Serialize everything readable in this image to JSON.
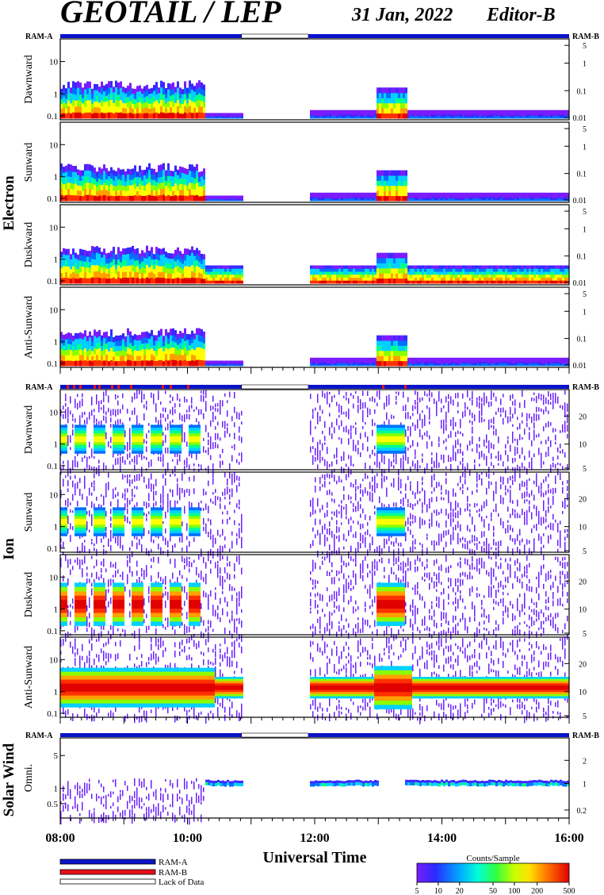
{
  "header": {
    "title": "GEOTAIL / LEP",
    "date": "31 Jan, 2022",
    "editor": "Editor-B"
  },
  "colors": {
    "ram_a": "#0a14c8",
    "ram_b": "#e8101a",
    "lack": "#ffffff",
    "spectrum": [
      "#7a1cff",
      "#3a28ff",
      "#0070ff",
      "#00d0ff",
      "#00ff90",
      "#8cff00",
      "#ffff00",
      "#ffa000",
      "#ff3000",
      "#e00000"
    ]
  },
  "chart_data": [
    {
      "type": "heatmap",
      "section": "Electron",
      "panels": [
        {
          "name": "Dawnward",
          "ylabel": "Dawnward"
        },
        {
          "name": "Sunward",
          "ylabel": "Sunward"
        },
        {
          "name": "Duskward",
          "ylabel": "Duskward"
        },
        {
          "name": "Anti-Sunward",
          "ylabel": "Anti-Sunward"
        }
      ],
      "left_ticks": [
        "10",
        "1",
        "0.1"
      ],
      "right_ticks": [
        "5",
        "1",
        "0.1",
        "0.01"
      ],
      "mode_bar_label_left": "RAM-A",
      "mode_bar_label_right": "RAM-B",
      "data_gap_hours": [
        10.85,
        11.9
      ]
    },
    {
      "type": "heatmap",
      "section": "Ion",
      "panels": [
        {
          "name": "Dawnward",
          "ylabel": "Dawnward"
        },
        {
          "name": "Sunward",
          "ylabel": "Sunward"
        },
        {
          "name": "Duskward",
          "ylabel": "Duskward"
        },
        {
          "name": "Anti-Sunward",
          "ylabel": "Anti-Sunward"
        }
      ],
      "left_ticks": [
        "10",
        "1",
        "0.1"
      ],
      "right_ticks": [
        "20",
        "10",
        "5"
      ],
      "mode_bar_label_left": "RAM-A",
      "mode_bar_label_right": "RAM-B",
      "data_gap_hours": [
        10.85,
        11.9
      ]
    },
    {
      "type": "heatmap",
      "section": "Solar Wind",
      "panels": [
        {
          "name": "Omni.",
          "ylabel": "Omni."
        }
      ],
      "left_ticks": [
        "5",
        "1",
        "0.5"
      ],
      "right_ticks": [
        "2",
        "1",
        "0.2"
      ],
      "mode_bar_label_left": "RAM-A",
      "mode_bar_label_right": "RAM-B",
      "data_gap_hours": [
        10.85,
        11.9
      ]
    }
  ],
  "x_axis": {
    "label": "Universal Time",
    "ticks": [
      "08:00",
      "10:00",
      "12:00",
      "14:00",
      "16:00"
    ],
    "range_hours": [
      8,
      16
    ]
  },
  "legend": {
    "items": [
      "RAM-A",
      "RAM-B",
      "Lack of Data"
    ],
    "colorbar_title": "Counts/Sample",
    "colorbar_ticks": [
      "5",
      "10",
      "20",
      "50",
      "100",
      "200",
      "500"
    ]
  }
}
